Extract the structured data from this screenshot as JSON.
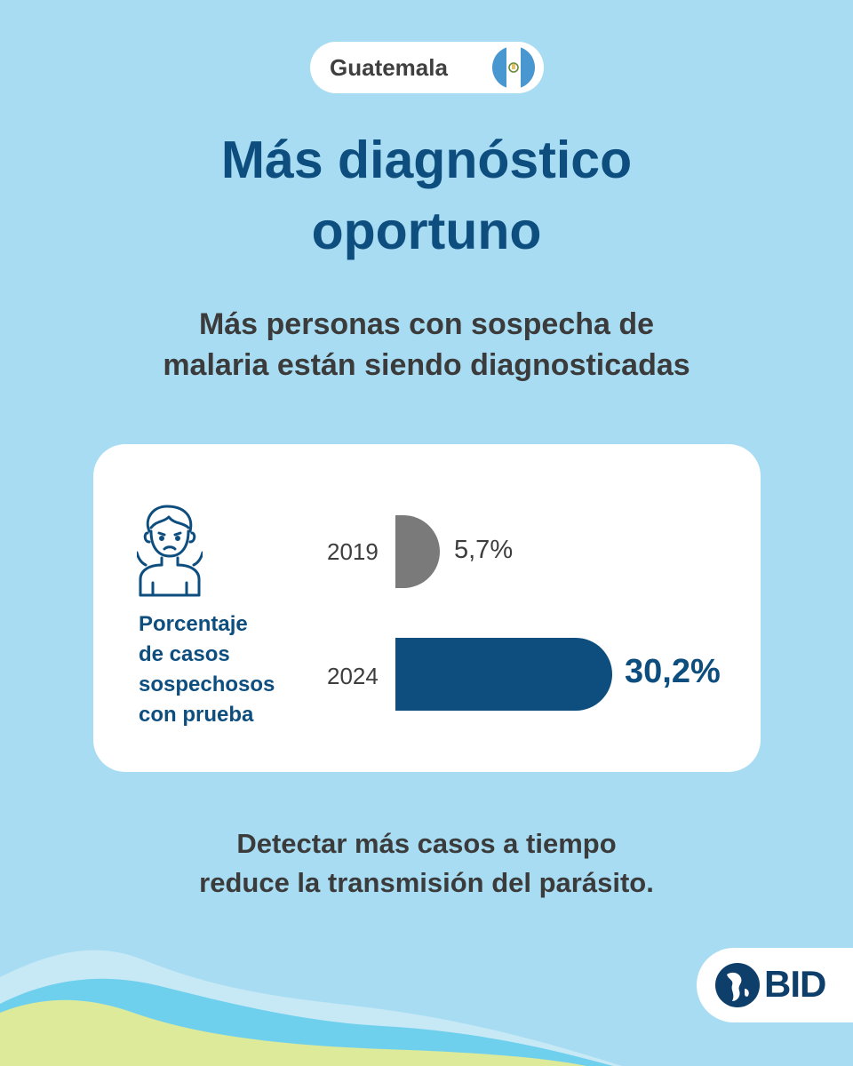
{
  "header": {
    "country": "Guatemala",
    "flag_icon": "guatemala-flag-icon",
    "title_line1": "Más diagnóstico",
    "title_line2": "oportuno",
    "subtitle_line1": "Más personas con sospecha de",
    "subtitle_line2": "malaria están siendo diagnosticadas"
  },
  "card": {
    "icon": "sick-person-icon",
    "metric_label_lines": [
      "Porcentaje",
      "de casos",
      "sospechosos",
      "con prueba"
    ]
  },
  "chart_data": {
    "type": "bar",
    "orientation": "horizontal",
    "categories": [
      "2019",
      "2024"
    ],
    "values": [
      5.7,
      30.2
    ],
    "value_labels": [
      "5,7%",
      "30,2%"
    ],
    "unit": "%",
    "bar_colors": [
      "#7a7a7a",
      "#0d4e7f"
    ]
  },
  "footer": {
    "line1": "Detectar más casos a tiempo",
    "line2": "reduce la transmisión del parásito."
  },
  "logo": {
    "text": "BID",
    "icon": "bid-globe-icon"
  },
  "colors": {
    "background": "#a8dcf3",
    "accent": "#0d4e7f",
    "text": "#3b3b3b"
  }
}
